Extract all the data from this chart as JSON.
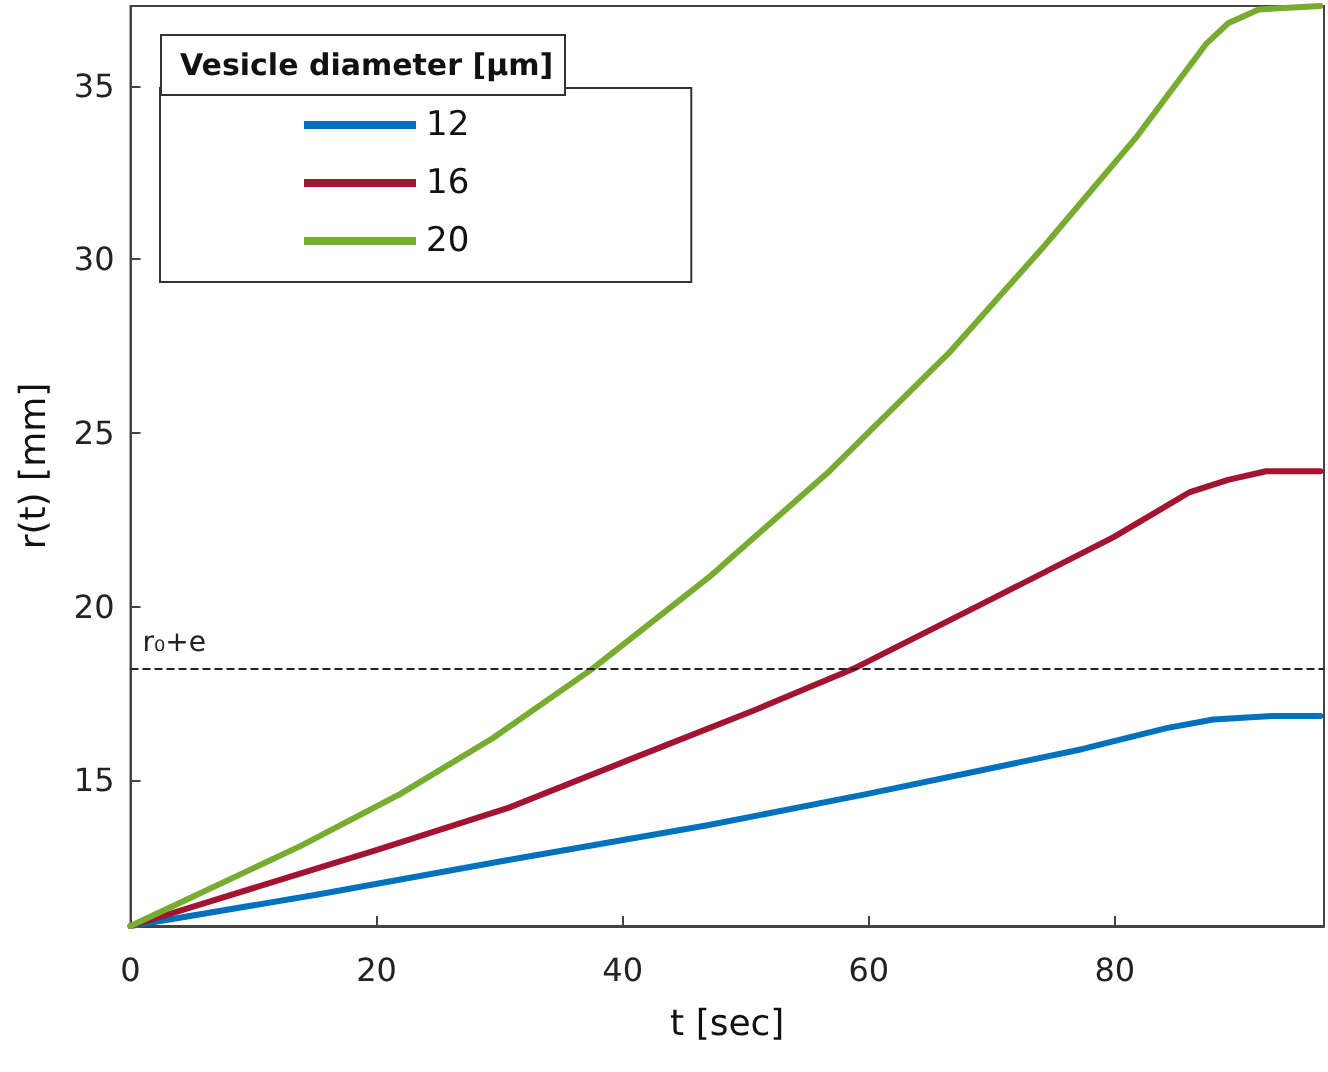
{
  "chart_data": {
    "type": "line",
    "xlabel": "t [sec]",
    "ylabel": "r(t) [mm]",
    "legend_title": "Vesicle diameter [μm]",
    "xlim": [
      0,
      97
    ],
    "ylim": [
      10.8,
      37.3
    ],
    "xticks": [
      0,
      20,
      40,
      60,
      80
    ],
    "yticks": [
      15,
      20,
      25,
      30,
      35
    ],
    "grid": false,
    "legend": "top left",
    "marker": "none",
    "line_style": "solid",
    "ref_lines": [
      {
        "axis": "y",
        "value": 18.2,
        "label": "r₀+e",
        "line_style": "dashed",
        "color": "#222222"
      }
    ],
    "series": [
      {
        "name": "12",
        "color": "#0072bd",
        "x": [
          0,
          15.1,
          30.7,
          46.9,
          59.8,
          68.0,
          77.4,
          84.2,
          88.0,
          92.9,
          96.7
        ],
        "values": [
          10.8,
          11.7,
          12.7,
          13.7,
          14.6,
          15.2,
          15.9,
          16.5,
          16.75,
          16.85,
          16.85
        ]
      },
      {
        "name": "16",
        "color": "#a2142f",
        "x": [
          0,
          20.1,
          30.7,
          40.6,
          50.6,
          58.7,
          69.9,
          79.9,
          86.1,
          89.2,
          92.3,
          96.7
        ],
        "values": [
          10.8,
          13.0,
          14.2,
          15.6,
          17.0,
          18.2,
          20.2,
          22.0,
          23.3,
          23.65,
          23.9,
          23.9
        ]
      },
      {
        "name": "20",
        "color": "#77ac30",
        "x": [
          0,
          13.8,
          21.9,
          29.4,
          37.5,
          47.2,
          56.8,
          66.5,
          74.3,
          81.7,
          87.4,
          89.2,
          91.7,
          96.7
        ],
        "values": [
          10.8,
          13.1,
          14.6,
          16.2,
          18.2,
          20.9,
          23.9,
          27.3,
          30.4,
          33.5,
          36.2,
          36.8,
          37.2,
          37.3
        ]
      }
    ]
  }
}
